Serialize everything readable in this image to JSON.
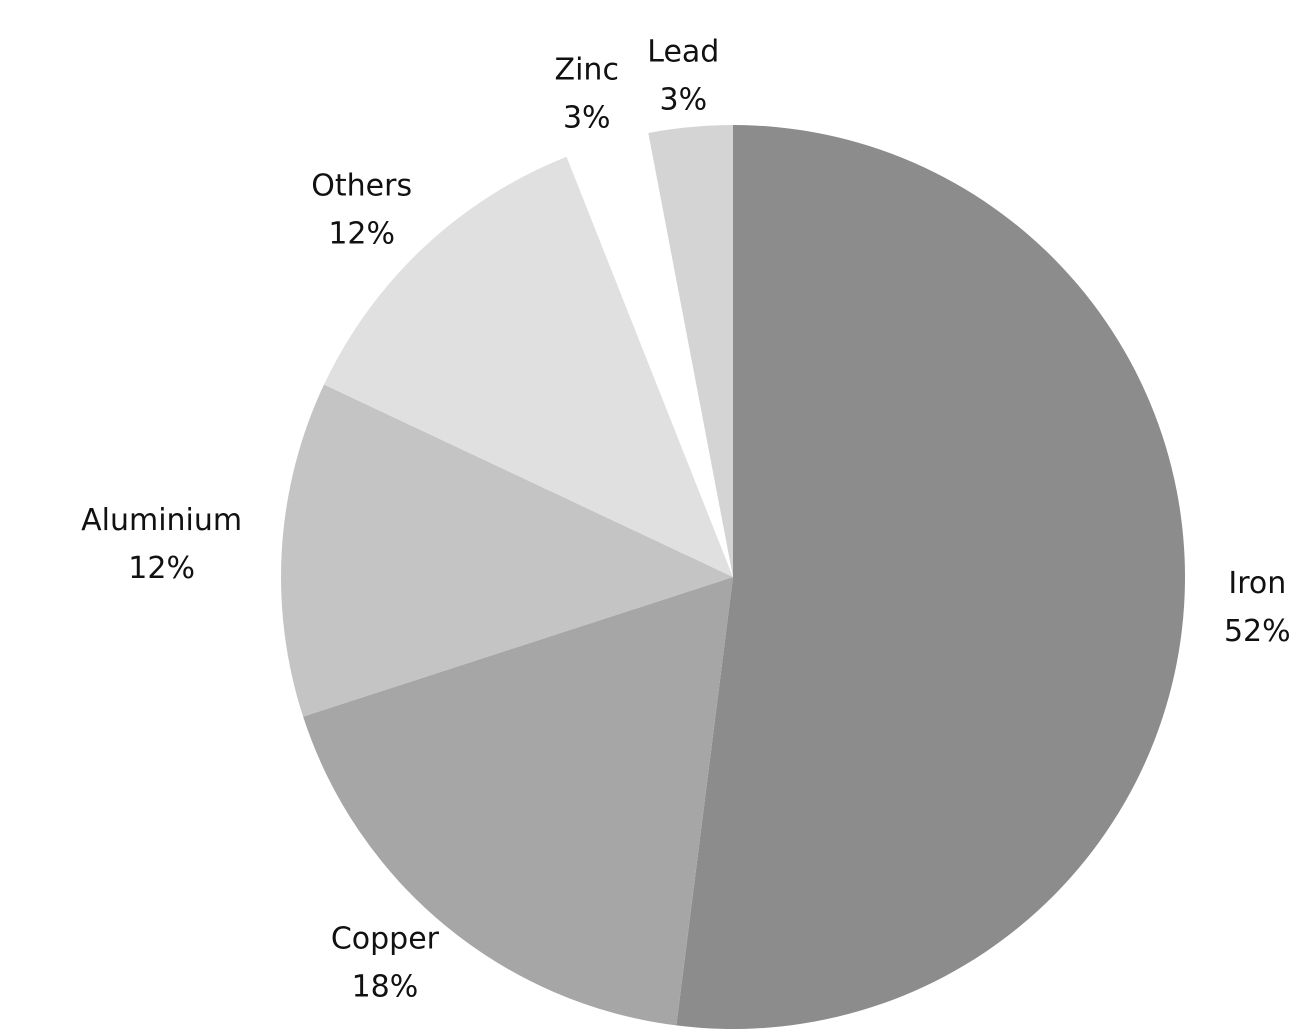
{
  "chart_data": {
    "type": "pie",
    "categories": [
      "Iron",
      "Copper",
      "Aluminium",
      "Others",
      "Zinc",
      "Lead"
    ],
    "values": [
      52,
      18,
      12,
      12,
      3,
      3
    ],
    "value_labels": [
      "52%",
      "18%",
      "12%",
      "12%",
      "3%",
      "3%"
    ],
    "colors": [
      "#8c8c8c",
      "#a6a6a6",
      "#c4c4c4",
      "#e0e0e0",
      "#ffffff",
      "#d4d4d4"
    ]
  }
}
